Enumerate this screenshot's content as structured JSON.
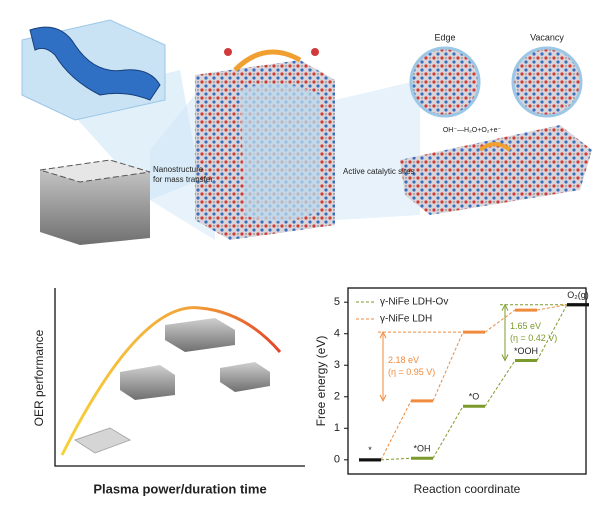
{
  "illustration": {
    "edge": "Edge",
    "vacancy": "Vacancy",
    "reaction": "OH⁻—H₂O+O₂+e⁻",
    "nanostructure": [
      "Nanostructure",
      "for mass transfer"
    ],
    "active_sites": "Active catalytic sites"
  },
  "sketch": {
    "y_label": "OER performance",
    "x_label": "Plasma power/duration time"
  },
  "chart_data": {
    "type": "energy-levels",
    "x_label": "Reaction coordinate",
    "y_label": "Free energy (eV)",
    "categories": [
      null,
      null,
      null,
      null,
      null
    ],
    "state_labels": [
      "*",
      "*OH",
      "*O",
      "*OOH",
      "O₂(g)"
    ],
    "ylim": [
      -0.45,
      5.45
    ],
    "yticks": [
      0,
      1,
      2,
      3,
      4,
      5
    ],
    "shared_color": "#111111",
    "legend": "top-left",
    "series": [
      {
        "name": "γ-NiFe LDH-Ov",
        "color": "#7c9a2b",
        "values": [
          0,
          0.05,
          1.7,
          3.15,
          4.92
        ],
        "gap_label": [
          "1.65 eV",
          "(η = 0.42 V)"
        ]
      },
      {
        "name": "γ-NiFe LDH",
        "color": "#f08a3c",
        "values": [
          0,
          1.87,
          4.05,
          4.75,
          4.92
        ],
        "gap_label": [
          "2.18 eV",
          "(η = 0.95 V)"
        ]
      }
    ]
  }
}
